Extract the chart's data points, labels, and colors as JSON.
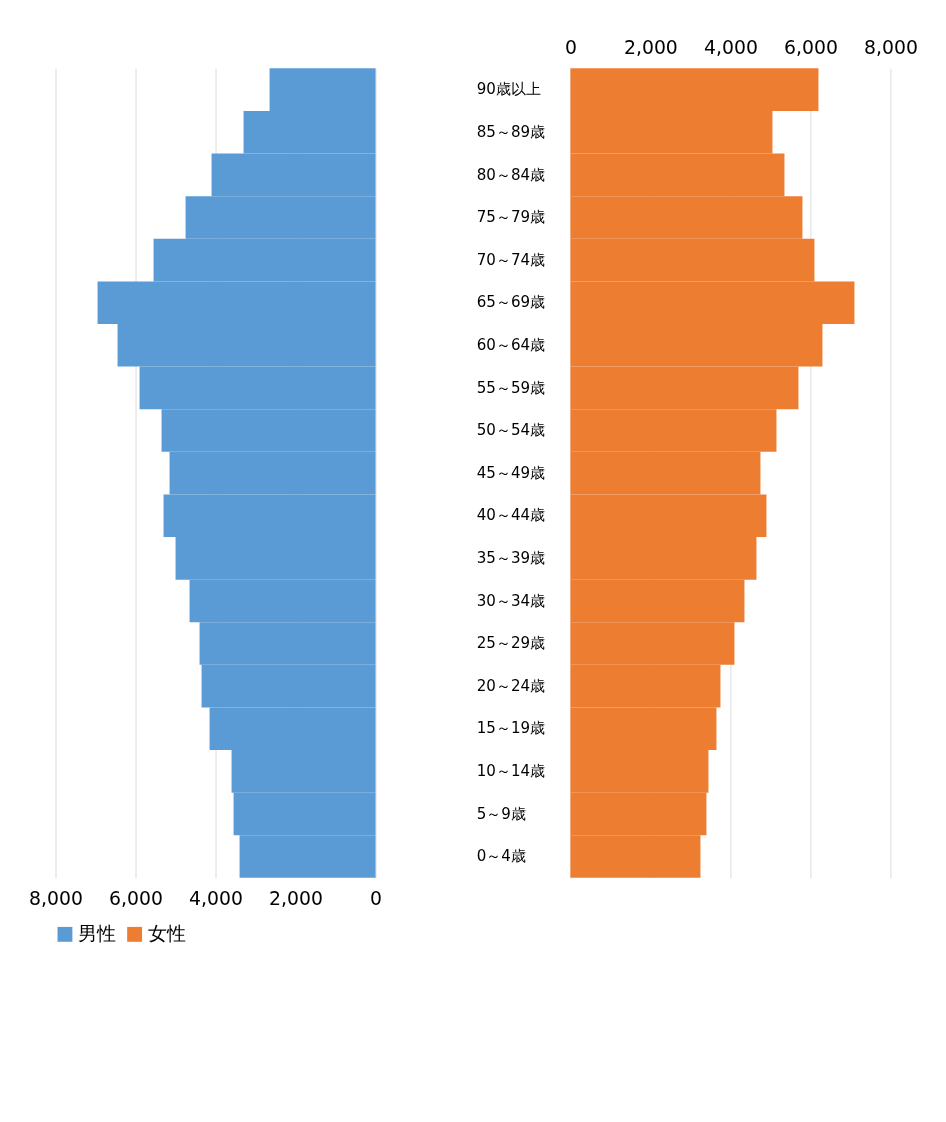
{
  "chart_data": [
    {
      "type": "bar",
      "orientation": "horizontal",
      "categories": [
        null,
        null,
        null,
        null,
        null,
        null,
        null,
        null,
        null,
        null,
        null,
        null,
        null,
        null,
        null,
        null,
        null,
        null,
        null
      ],
      "series": [
        {
          "name": "男性",
          "color": "#5b9bd5",
          "values": [
            2650,
            3300,
            4100,
            4750,
            5550,
            6950,
            6450,
            5900,
            5350,
            5150,
            5300,
            5000,
            4650,
            4400,
            4350,
            4150,
            3600,
            3550,
            3400
          ]
        }
      ],
      "xlim": [
        8000,
        0
      ],
      "xticks": [
        {
          "value": 8000,
          "label": "8,000"
        },
        {
          "value": 6000,
          "label": "6,000"
        },
        {
          "value": 4000,
          "label": "4,000"
        },
        {
          "value": 2000,
          "label": "2,000"
        },
        0
      ],
      "tick_labels": "x",
      "grid": "x",
      "legend": "bottom"
    },
    {
      "type": "bar",
      "orientation": "horizontal",
      "categories": [
        "90歳以上",
        "85～89歳",
        "80～84歳",
        "75～79歳",
        "70～74歳",
        "65～69歳",
        "60～64歳",
        "55～59歳",
        "50～54歳",
        "45～49歳",
        "40～44歳",
        "35～39歳",
        "30～34歳",
        "25～29歳",
        "20～24歳",
        "15～19歳",
        "10～14歳",
        "5～9歳",
        "0～4歳"
      ],
      "series": [
        {
          "name": "女性",
          "color": "#ed7d31",
          "values": [
            6200,
            5050,
            5350,
            5800,
            6100,
            7100,
            6300,
            5700,
            5150,
            4750,
            4900,
            4650,
            4350,
            4100,
            3750,
            3650,
            3450,
            3400,
            3250
          ]
        }
      ],
      "xlim": [
        0,
        8000
      ],
      "xticks": [
        0,
        {
          "value": 2000,
          "label": "2,000"
        },
        {
          "value": 4000,
          "label": "4,000"
        },
        {
          "value": 6000,
          "label": "6,000"
        },
        {
          "value": 8000,
          "label": "8,000"
        }
      ],
      "grid": "x",
      "legend": "bottom"
    }
  ]
}
